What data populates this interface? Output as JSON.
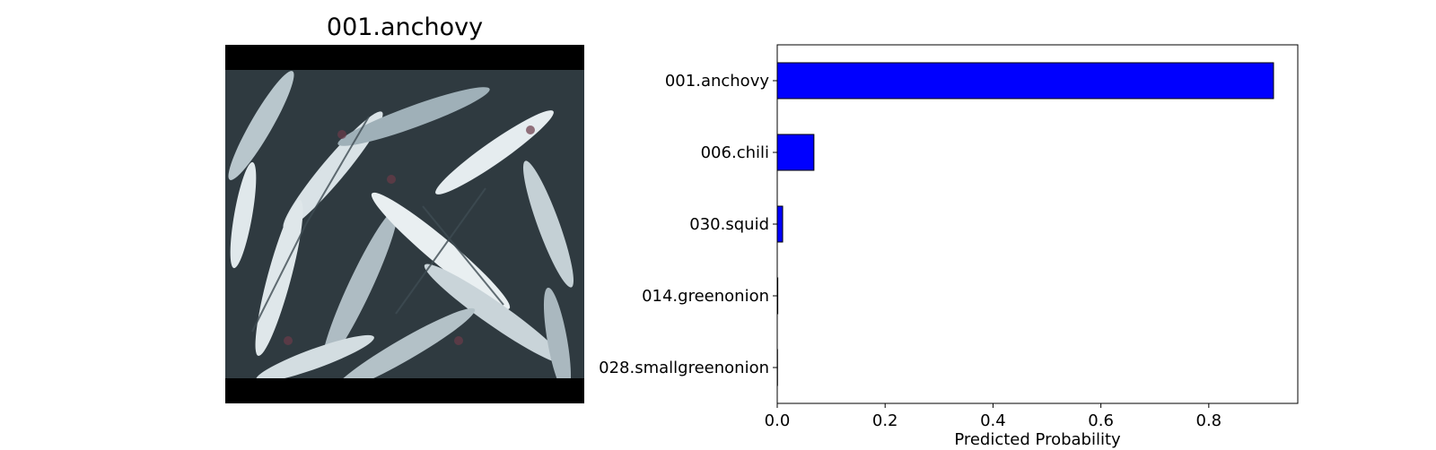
{
  "image_panel": {
    "title": "001.anchovy",
    "photo_icon": "anchovy-photo"
  },
  "chart_data": {
    "type": "bar",
    "orientation": "horizontal",
    "categories": [
      "001.anchovy",
      "006.chili",
      "030.squid",
      "014.greenonion",
      "028.smallgreenonion"
    ],
    "values": [
      0.92,
      0.068,
      0.01,
      0.001,
      0.0005
    ],
    "xlabel": "Predicted Probability",
    "ylabel": "",
    "xlim": [
      0,
      0.965
    ],
    "xticks": [
      0.0,
      0.2,
      0.4,
      0.6,
      0.8
    ],
    "xtick_labels": [
      "0.0",
      "0.2",
      "0.4",
      "0.6",
      "0.8"
    ],
    "bar_color": "#0000ff",
    "bar_edge_color": "#000000",
    "grid": false,
    "legend": "none"
  }
}
